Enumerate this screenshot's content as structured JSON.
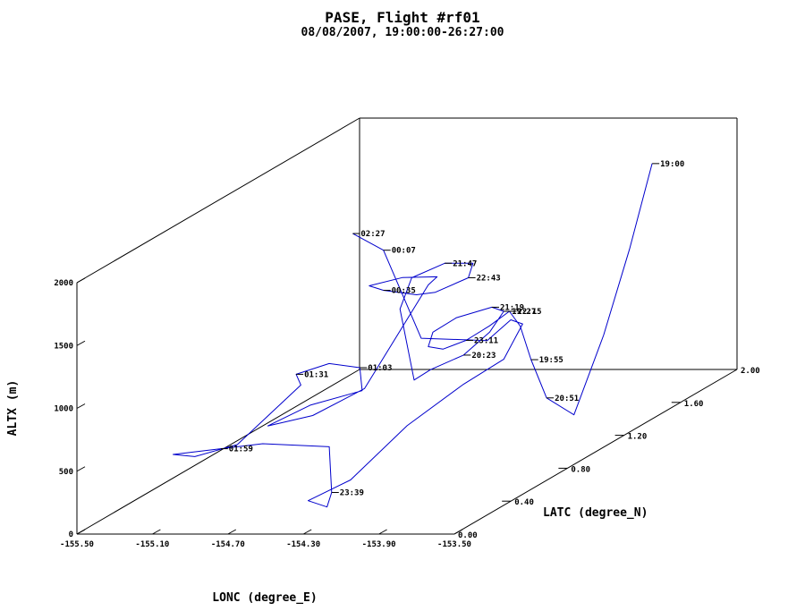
{
  "chart_data": {
    "type": "line",
    "title": "PASE, Flight #rf01",
    "subtitle": "08/08/2007, 19:00:00-26:27:00",
    "xlabel": "LONC (degree_E)",
    "ylabel": "LATC (degree_N)",
    "zlabel": "ALTX (m)",
    "xlim": [
      -155.5,
      -153.5
    ],
    "ylim": [
      0.0,
      2.0
    ],
    "zlim": [
      0,
      2000
    ],
    "x_ticks": [
      "-155.50",
      "-155.10",
      "-154.70",
      "-154.30",
      "-153.90",
      "-153.50"
    ],
    "y_ticks": [
      "0.00",
      "0.40",
      "0.80",
      "1.20",
      "1.60",
      "2.00"
    ],
    "z_ticks": [
      "0",
      "500",
      "1000",
      "1500",
      "2000"
    ],
    "line_color": "#0000cc",
    "series": [
      {
        "points": [
          [
            -153.65,
            1.6,
            1900
          ],
          [
            -153.68,
            1.48,
            1300
          ],
          [
            -153.72,
            1.35,
            700
          ],
          [
            -153.78,
            1.22,
            150
          ],
          [
            -153.85,
            1.12,
            350
          ],
          [
            -153.88,
            1.05,
            700
          ],
          [
            -153.9,
            1.0,
            1000
          ],
          [
            -153.92,
            0.95,
            1150
          ],
          [
            -153.95,
            0.85,
            1100
          ],
          [
            -154.0,
            0.75,
            1050
          ],
          [
            -154.1,
            0.72,
            1000
          ],
          [
            -154.2,
            0.75,
            1000
          ],
          [
            -154.25,
            0.85,
            1050
          ],
          [
            -154.2,
            0.95,
            1100
          ],
          [
            -154.05,
            1.0,
            1150
          ],
          [
            -153.95,
            0.95,
            1150
          ],
          [
            -153.95,
            0.85,
            1050
          ],
          [
            -154.05,
            0.8,
            900
          ],
          [
            -154.15,
            0.7,
            850
          ],
          [
            -154.2,
            0.65,
            800
          ],
          [
            -154.35,
            0.75,
            1300
          ],
          [
            -154.4,
            0.9,
            1450
          ],
          [
            -154.3,
            1.0,
            1500
          ],
          [
            -154.15,
            1.0,
            1500
          ],
          [
            -154.1,
            0.9,
            1450
          ],
          [
            -154.2,
            0.8,
            1400
          ],
          [
            -154.3,
            0.8,
            1380
          ],
          [
            -154.55,
            0.9,
            1350
          ],
          [
            -154.7,
            1.0,
            1320
          ],
          [
            -154.6,
            1.1,
            1320
          ],
          [
            -154.4,
            1.08,
            1340
          ],
          [
            -154.35,
            0.95,
            1360
          ],
          [
            -154.5,
            0.7,
            700
          ],
          [
            -154.7,
            0.6,
            550
          ],
          [
            -154.9,
            0.55,
            500
          ],
          [
            -154.75,
            0.65,
            600
          ],
          [
            -154.55,
            0.75,
            650
          ],
          [
            -154.6,
            0.8,
            800
          ],
          [
            -154.8,
            0.85,
            800
          ],
          [
            -154.9,
            0.75,
            780
          ],
          [
            -154.8,
            0.65,
            760
          ],
          [
            -154.95,
            0.4,
            450
          ],
          [
            -155.1,
            0.3,
            420
          ],
          [
            -155.2,
            0.28,
            450
          ],
          [
            -155.0,
            0.35,
            450
          ],
          [
            -154.8,
            0.38,
            470
          ],
          [
            -154.5,
            0.45,
            400
          ],
          [
            -154.3,
            0.2,
            200
          ],
          [
            -154.25,
            0.1,
            150
          ],
          [
            -154.35,
            0.1,
            200
          ],
          [
            -154.2,
            0.2,
            300
          ],
          [
            -154.05,
            0.4,
            600
          ],
          [
            -153.9,
            0.6,
            800
          ],
          [
            -153.8,
            0.75,
            900
          ],
          [
            -153.85,
            0.95,
            1050
          ],
          [
            -153.95,
            1.0,
            1050
          ],
          [
            -154.0,
            0.9,
            950
          ],
          [
            -154.2,
            0.7,
            1100
          ],
          [
            -154.4,
            0.7,
            1800
          ],
          [
            -154.6,
            0.75,
            1900
          ]
        ]
      }
    ],
    "annotations": [
      {
        "label": "19:00",
        "point": [
          -153.65,
          1.6,
          1900
        ]
      },
      {
        "label": "19:27",
        "point": [
          -153.95,
          0.95,
          1150
        ]
      },
      {
        "label": "19:55",
        "point": [
          -153.88,
          1.05,
          700
        ]
      },
      {
        "label": "20:23",
        "point": [
          -154.05,
          0.8,
          900
        ]
      },
      {
        "label": "20:51",
        "point": [
          -153.85,
          1.12,
          350
        ]
      },
      {
        "label": "21:19",
        "point": [
          -154.05,
          1.0,
          1150
        ]
      },
      {
        "label": "21:47",
        "point": [
          -154.3,
          1.0,
          1500
        ]
      },
      {
        "label": "22:15",
        "point": [
          -153.92,
          0.95,
          1150
        ]
      },
      {
        "label": "22:43",
        "point": [
          -154.1,
          0.9,
          1450
        ]
      },
      {
        "label": "23:11",
        "point": [
          -154.0,
          0.75,
          1050
        ]
      },
      {
        "label": "23:39",
        "point": [
          -154.3,
          0.2,
          200
        ]
      },
      {
        "label": "00:07",
        "point": [
          -154.4,
          0.7,
          1800
        ]
      },
      {
        "label": "00:35",
        "point": [
          -154.55,
          0.9,
          1350
        ]
      },
      {
        "label": "01:03",
        "point": [
          -154.6,
          0.8,
          800
        ]
      },
      {
        "label": "01:31",
        "point": [
          -154.9,
          0.75,
          780
        ]
      },
      {
        "label": "01:59",
        "point": [
          -155.0,
          0.35,
          450
        ]
      },
      {
        "label": "02:27",
        "point": [
          -154.6,
          0.75,
          1900
        ]
      }
    ]
  }
}
